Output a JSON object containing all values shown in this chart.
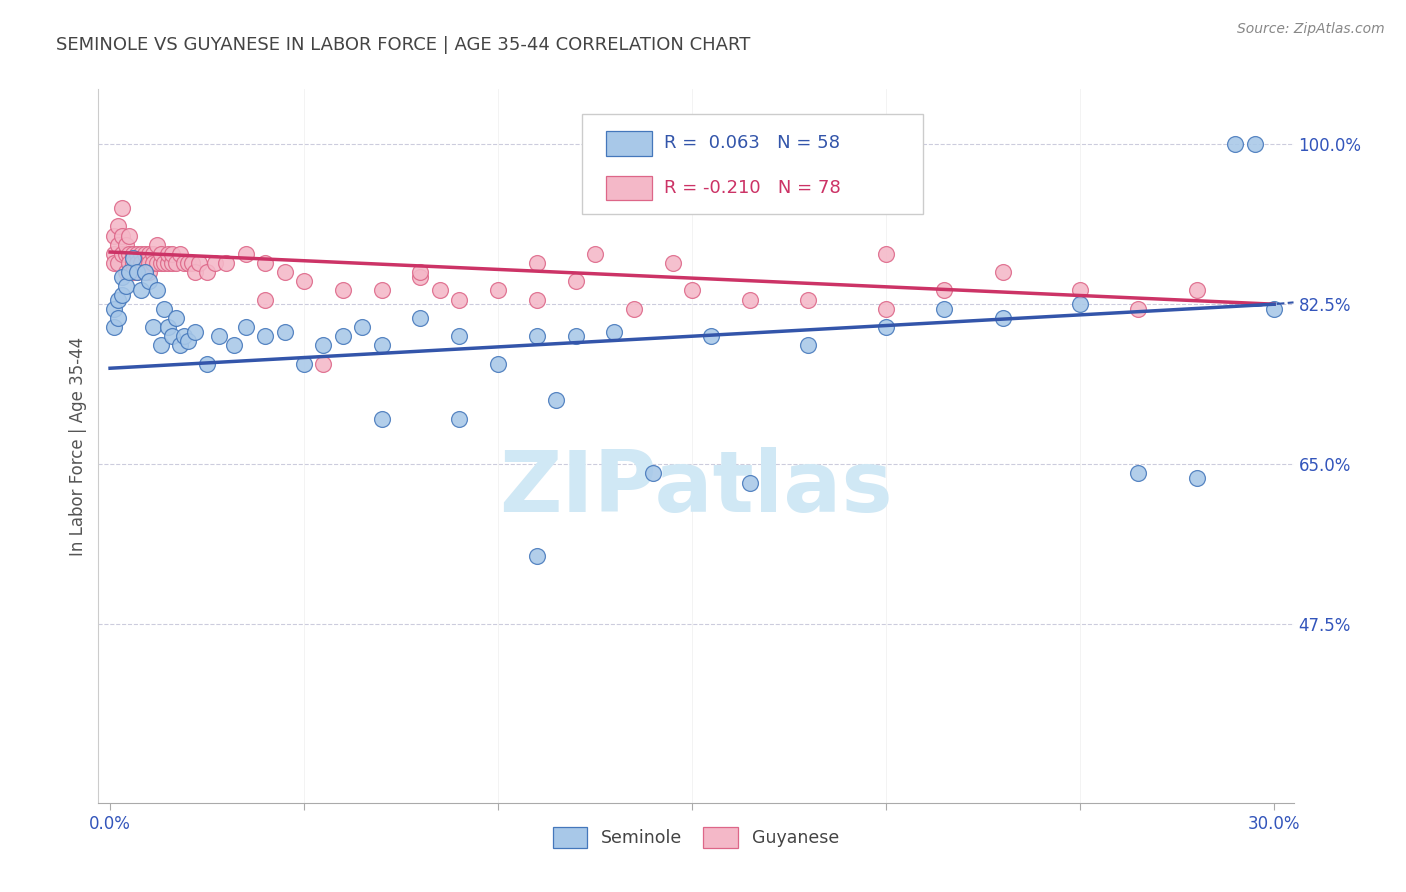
{
  "title": "SEMINOLE VS GUYANESE IN LABOR FORCE | AGE 35-44 CORRELATION CHART",
  "source": "Source: ZipAtlas.com",
  "ylabel": "In Labor Force | Age 35-44",
  "xlim": [
    -0.003,
    0.305
  ],
  "ylim": [
    0.28,
    1.06
  ],
  "xtick_vals": [
    0.0,
    0.05,
    0.1,
    0.15,
    0.2,
    0.25,
    0.3
  ],
  "xticklabels": [
    "0.0%",
    "",
    "",
    "",
    "",
    "",
    "30.0%"
  ],
  "ytick_positions": [
    1.0,
    0.825,
    0.65,
    0.475
  ],
  "ytick_labels": [
    "100.0%",
    "82.5%",
    "65.0%",
    "47.5%"
  ],
  "blue_face": "#A8C8E8",
  "blue_edge": "#4477BB",
  "pink_face": "#F4B8C8",
  "pink_edge": "#DD6688",
  "blue_line": "#3355AA",
  "pink_line": "#CC3366",
  "watermark_color": "#D0E8F5",
  "seminole_x": [
    0.001,
    0.001,
    0.002,
    0.002,
    0.003,
    0.003,
    0.004,
    0.005,
    0.006,
    0.007,
    0.008,
    0.009,
    0.01,
    0.011,
    0.012,
    0.013,
    0.014,
    0.015,
    0.016,
    0.017,
    0.018,
    0.019,
    0.02,
    0.022,
    0.025,
    0.028,
    0.032,
    0.035,
    0.04,
    0.045,
    0.05,
    0.055,
    0.06,
    0.065,
    0.07,
    0.08,
    0.09,
    0.1,
    0.11,
    0.12,
    0.13,
    0.14,
    0.155,
    0.165,
    0.18,
    0.2,
    0.215,
    0.23,
    0.25,
    0.265,
    0.28,
    0.29,
    0.295,
    0.3,
    0.115,
    0.07,
    0.09,
    0.11
  ],
  "seminole_y": [
    0.82,
    0.8,
    0.83,
    0.81,
    0.855,
    0.835,
    0.845,
    0.86,
    0.875,
    0.86,
    0.84,
    0.86,
    0.85,
    0.8,
    0.84,
    0.78,
    0.82,
    0.8,
    0.79,
    0.81,
    0.78,
    0.79,
    0.785,
    0.795,
    0.76,
    0.79,
    0.78,
    0.8,
    0.79,
    0.795,
    0.76,
    0.78,
    0.79,
    0.8,
    0.78,
    0.81,
    0.79,
    0.76,
    0.79,
    0.79,
    0.795,
    0.64,
    0.79,
    0.63,
    0.78,
    0.8,
    0.82,
    0.81,
    0.825,
    0.64,
    0.635,
    1.0,
    1.0,
    0.82,
    0.72,
    0.7,
    0.7,
    0.55
  ],
  "guyanese_x": [
    0.001,
    0.001,
    0.001,
    0.002,
    0.002,
    0.002,
    0.003,
    0.003,
    0.003,
    0.004,
    0.004,
    0.004,
    0.005,
    0.005,
    0.005,
    0.006,
    0.006,
    0.006,
    0.007,
    0.007,
    0.007,
    0.008,
    0.008,
    0.009,
    0.009,
    0.01,
    0.01,
    0.01,
    0.011,
    0.011,
    0.012,
    0.012,
    0.013,
    0.013,
    0.014,
    0.015,
    0.015,
    0.016,
    0.016,
    0.017,
    0.018,
    0.019,
    0.02,
    0.021,
    0.022,
    0.023,
    0.025,
    0.027,
    0.03,
    0.035,
    0.04,
    0.045,
    0.05,
    0.06,
    0.07,
    0.08,
    0.09,
    0.1,
    0.11,
    0.12,
    0.135,
    0.15,
    0.165,
    0.18,
    0.2,
    0.215,
    0.23,
    0.25,
    0.265,
    0.28,
    0.11,
    0.125,
    0.145,
    0.2,
    0.085,
    0.055,
    0.04,
    0.08
  ],
  "guyanese_y": [
    0.88,
    0.9,
    0.87,
    0.91,
    0.89,
    0.87,
    0.88,
    0.9,
    0.93,
    0.88,
    0.89,
    0.86,
    0.88,
    0.87,
    0.9,
    0.88,
    0.87,
    0.86,
    0.88,
    0.87,
    0.86,
    0.88,
    0.87,
    0.88,
    0.86,
    0.88,
    0.87,
    0.86,
    0.88,
    0.87,
    0.89,
    0.87,
    0.87,
    0.88,
    0.87,
    0.87,
    0.88,
    0.87,
    0.88,
    0.87,
    0.88,
    0.87,
    0.87,
    0.87,
    0.86,
    0.87,
    0.86,
    0.87,
    0.87,
    0.88,
    0.87,
    0.86,
    0.85,
    0.84,
    0.84,
    0.855,
    0.83,
    0.84,
    0.83,
    0.85,
    0.82,
    0.84,
    0.83,
    0.83,
    0.82,
    0.84,
    0.86,
    0.84,
    0.82,
    0.84,
    0.87,
    0.88,
    0.87,
    0.88,
    0.84,
    0.76,
    0.83,
    0.86
  ]
}
